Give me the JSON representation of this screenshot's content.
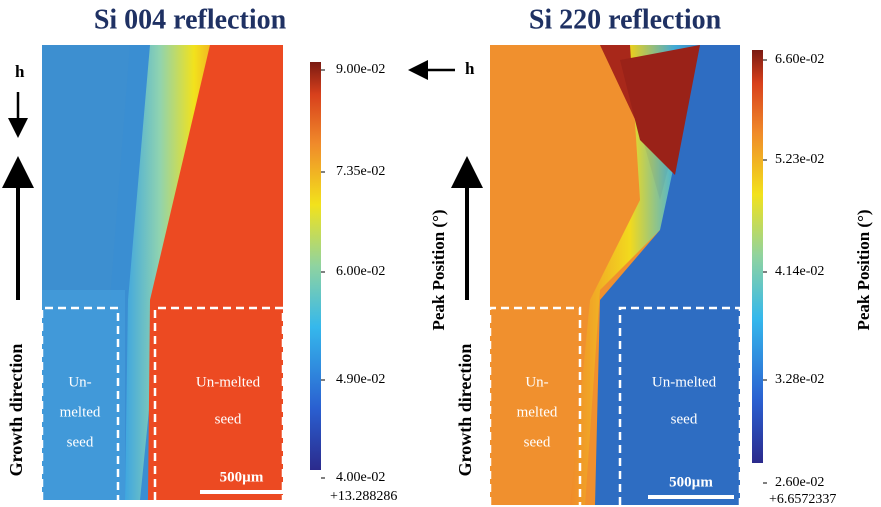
{
  "panels": [
    {
      "title": "Si 004 reflection",
      "colorbar": {
        "ticks": [
          "9.00e-02",
          "7.35e-02",
          "6.00e-02",
          "4.90e-02",
          "4.00e-02"
        ],
        "offset": "+13.288286",
        "label": "Peak Position (°)"
      },
      "h_label": "h",
      "growth_label": "Growth direction",
      "regions": [
        {
          "lines": [
            "Un-",
            "melted",
            "seed"
          ]
        },
        {
          "lines": [
            "Un-melted",
            "seed"
          ]
        }
      ],
      "scale_bar": "500µm"
    },
    {
      "title": "Si 220 reflection",
      "colorbar": {
        "ticks": [
          "6.60e-02",
          "5.23e-02",
          "4.14e-02",
          "3.28e-02",
          "2.60e-02"
        ],
        "offset": "+6.6572337",
        "label": "Peak Position (°)"
      },
      "h_label": "h",
      "growth_label": "Growth direction",
      "regions": [
        {
          "lines": [
            "Un-",
            "melted",
            "seed"
          ]
        },
        {
          "lines": [
            "Un-melted",
            "seed"
          ]
        }
      ],
      "scale_bar": "500µm"
    }
  ]
}
